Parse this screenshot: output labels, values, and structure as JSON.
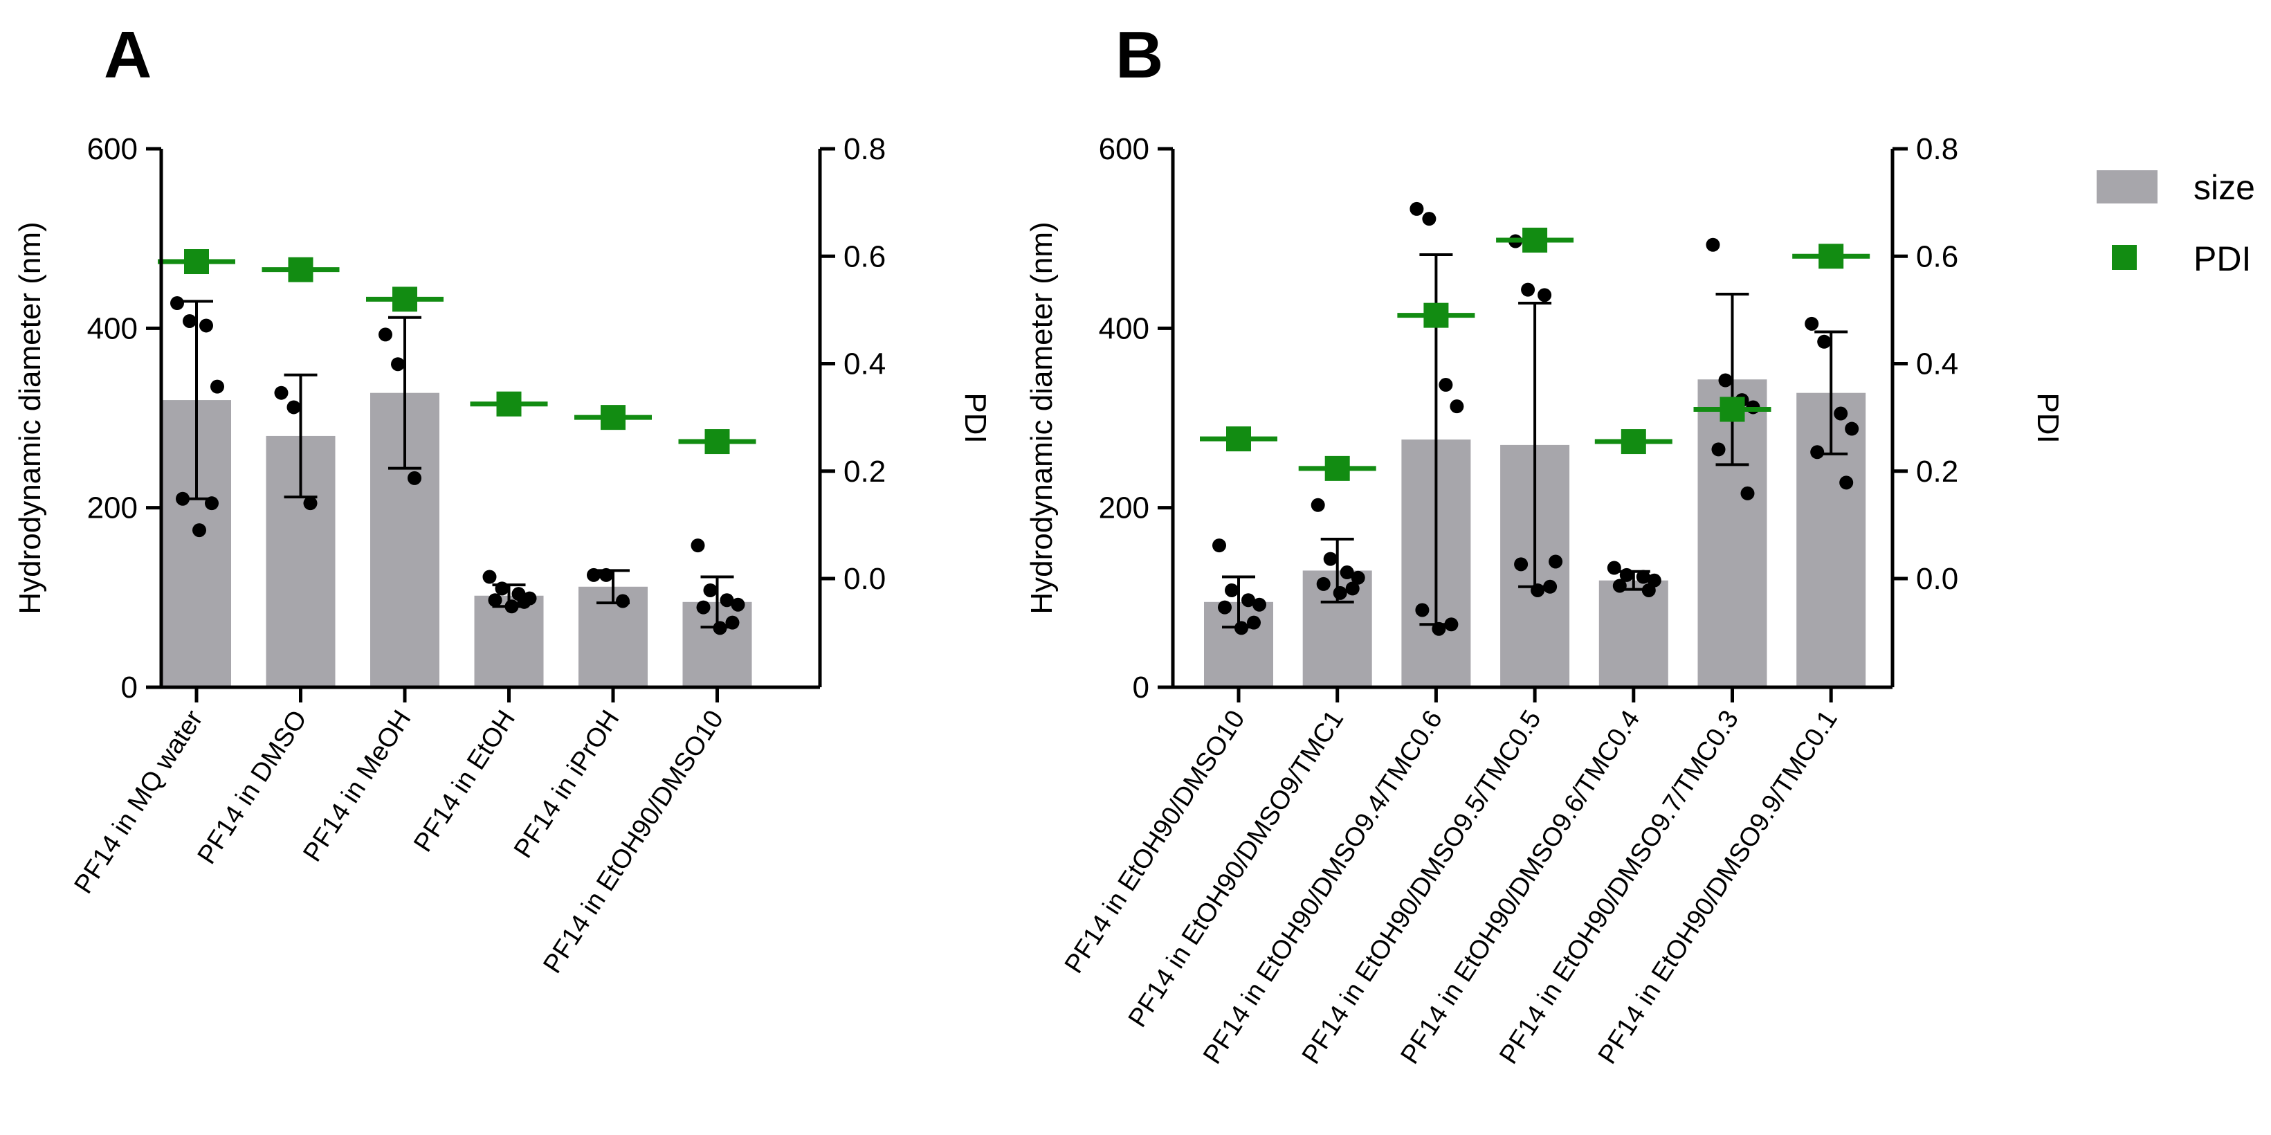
{
  "legend": {
    "size_label": "size",
    "pdi_label": "PDI"
  },
  "colors": {
    "bar": "#a7a6ab",
    "pdi": "#128c12",
    "points": "#000000"
  },
  "chart_data": [
    {
      "panel": "A",
      "type": "bar",
      "ylabel": "Hydrodynamic diameter (nm)",
      "y2label": "PDI",
      "ylim": [
        0,
        600
      ],
      "yticks": [
        0,
        200,
        400,
        600
      ],
      "y2lim": [
        -0.2,
        0.8
      ],
      "y2ticks": [
        0.0,
        0.2,
        0.4,
        0.6,
        0.8
      ],
      "categories": [
        "PF14 in MQ water",
        "PF14 in DMSO",
        "PF14 in MeOH",
        "PF14 in EtOH",
        "PF14 in iPrOH",
        "PF14 in EtOH90/DMSO10"
      ],
      "size": [
        320,
        280,
        328,
        102,
        112,
        95
      ],
      "size_sd": [
        110,
        68,
        84,
        12,
        18,
        28
      ],
      "points": [
        [
          428,
          408,
          403,
          335,
          210,
          205,
          175
        ],
        [
          328,
          312,
          205
        ],
        [
          393,
          360,
          233
        ],
        [
          123,
          110,
          104,
          99,
          97,
          95,
          90
        ],
        [
          125,
          125,
          96
        ],
        [
          158,
          108,
          97,
          92,
          89,
          72,
          66
        ]
      ],
      "pdi": [
        0.59,
        0.575,
        0.52,
        0.325,
        0.3,
        0.255
      ]
    },
    {
      "panel": "B",
      "type": "bar",
      "ylabel": "Hydrodynamic diameter (nm)",
      "y2label": "PDI",
      "ylim": [
        0,
        600
      ],
      "yticks": [
        0,
        200,
        400,
        600
      ],
      "y2lim": [
        -0.2,
        0.8
      ],
      "y2ticks": [
        0.0,
        0.2,
        0.4,
        0.6,
        0.8
      ],
      "categories": [
        "PF14 in EtOH90/DMSO10",
        "PF14 in EtOH90/DMSO9/TMC1",
        "PF14 in EtOH90/DMSO9.4/TMC0.6",
        "PF14 in EtOH90/DMSO9.5/TMC0.5",
        "PF14 in EtOH90/DMSO9.6/TMC0.4",
        "PF14 in EtOH90/DMSO9.7/TMC0.3",
        "PF14 in EtOH90/DMSO9.9/TMC0.1"
      ],
      "size": [
        95,
        130,
        276,
        270,
        119,
        343,
        328
      ],
      "size_sd": [
        28,
        35,
        206,
        158,
        10,
        95,
        68
      ],
      "points": [
        [
          158,
          108,
          97,
          92,
          89,
          72,
          66
        ],
        [
          203,
          143,
          128,
          122,
          115,
          110,
          105
        ],
        [
          533,
          522,
          337,
          313,
          86,
          70,
          65
        ],
        [
          497,
          443,
          437,
          140,
          137,
          112,
          108
        ],
        [
          133,
          125,
          123,
          119,
          113,
          108
        ],
        [
          493,
          342,
          320,
          312,
          265,
          216
        ],
        [
          405,
          385,
          305,
          288,
          262,
          228
        ]
      ],
      "pdi": [
        0.26,
        0.205,
        0.49,
        0.63,
        0.255,
        0.315,
        0.6
      ]
    }
  ]
}
